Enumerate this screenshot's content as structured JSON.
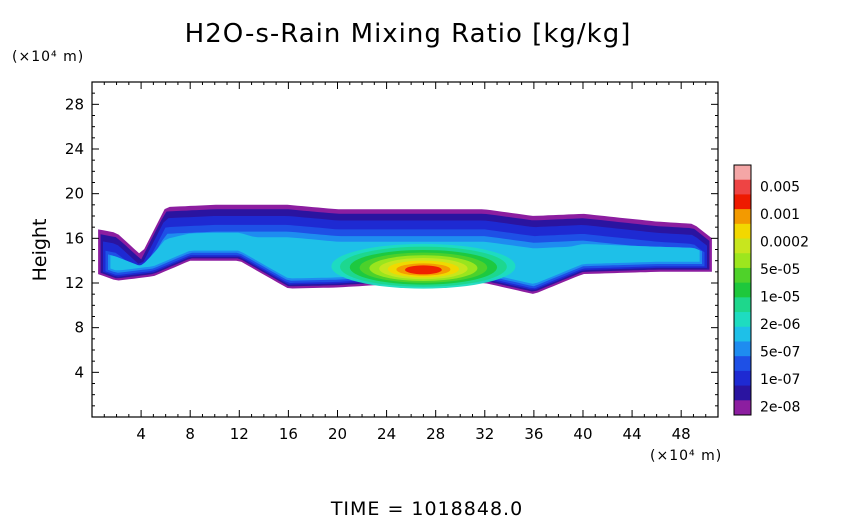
{
  "chart_data": {
    "type": "heatmap",
    "title": "H2O-s-Rain Mixing Ratio [kg/kg]",
    "xlabel": "",
    "x_unit_label": "(×10⁴ m)",
    "ylabel": "Height",
    "y_unit_label": "(×10⁴ m)",
    "xlim": [
      0,
      51
    ],
    "ylim": [
      0,
      30
    ],
    "xticks": [
      "4",
      "8",
      "12",
      "16",
      "20",
      "24",
      "28",
      "32",
      "36",
      "40",
      "44",
      "48"
    ],
    "xtick_values": [
      4,
      8,
      12,
      16,
      20,
      24,
      28,
      32,
      36,
      40,
      44,
      48
    ],
    "yticks": [
      "4",
      "8",
      "12",
      "16",
      "20",
      "24",
      "28"
    ],
    "ytick_values": [
      4,
      8,
      12,
      16,
      20,
      24,
      28
    ],
    "colorbar": {
      "labels": [
        "0.005",
        "0.001",
        "0.0002",
        "5e-05",
        "1e-05",
        "2e-06",
        "5e-07",
        "1e-07",
        "2e-08"
      ],
      "colors_top_to_bottom": [
        "#f4a6a6",
        "#ee4444",
        "#ee1a00",
        "#f39a00",
        "#f2d800",
        "#c8e61e",
        "#9de61e",
        "#4fd22a",
        "#1ec83c",
        "#1ed78c",
        "#1edcc0",
        "#1ec0e8",
        "#1e8cf0",
        "#1e50e6",
        "#1e2ad2",
        "#2a14a0",
        "#8c1ea0"
      ]
    },
    "rain_layer": {
      "x_range": [
        0.5,
        50.5
      ],
      "top_height_at_x": [
        [
          0.5,
          16.8
        ],
        [
          2,
          16.5
        ],
        [
          4,
          14.5
        ],
        [
          6,
          18.8
        ],
        [
          10,
          19
        ],
        [
          16,
          19
        ],
        [
          20,
          18.6
        ],
        [
          26,
          18.6
        ],
        [
          32,
          18.6
        ],
        [
          36,
          18
        ],
        [
          40,
          18.2
        ],
        [
          46,
          17.5
        ],
        [
          49,
          17.3
        ],
        [
          50.5,
          16
        ]
      ],
      "base_height_at_x": [
        [
          0.5,
          12.8
        ],
        [
          2,
          12.2
        ],
        [
          5,
          12.6
        ],
        [
          8,
          14
        ],
        [
          12,
          14
        ],
        [
          16,
          11.5
        ],
        [
          20,
          11.6
        ],
        [
          26,
          12
        ],
        [
          32,
          12
        ],
        [
          36,
          11
        ],
        [
          40,
          12.8
        ],
        [
          46,
          13
        ],
        [
          50.5,
          13
        ]
      ],
      "max_region": {
        "x_center": 27,
        "height": 13,
        "x_range": [
          20,
          35
        ],
        "value": 0.001
      }
    },
    "grid": false,
    "legend": "right colorbar"
  },
  "footer": {
    "time_label": "TIME  =  1018848.0"
  }
}
